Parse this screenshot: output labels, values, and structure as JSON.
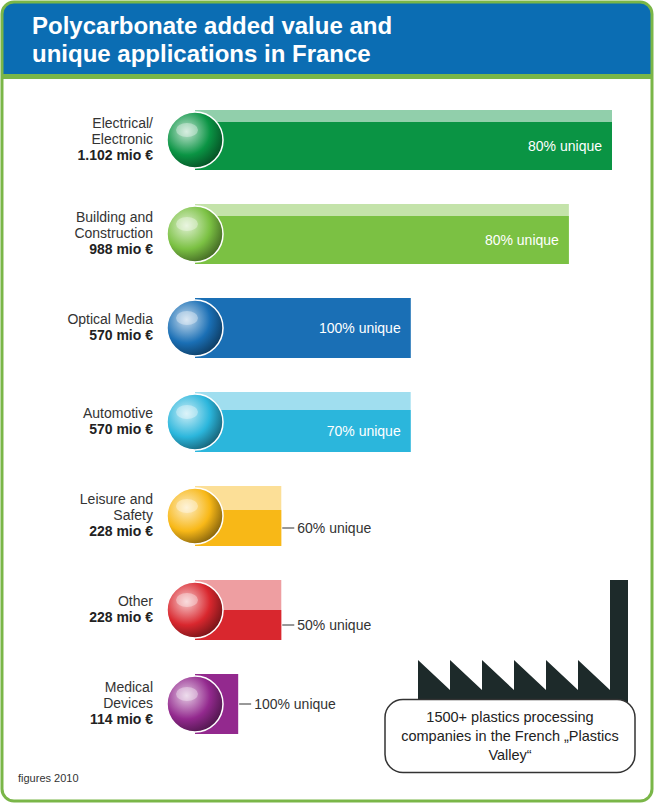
{
  "chart_data": {
    "type": "bar",
    "title": "Polycarbonate added value and unique applications in France",
    "orientation": "horizontal",
    "categories": [
      "Electrical/ Electronic",
      "Building and Construction",
      "Optical Media",
      "Automotive",
      "Leisure and Safety",
      "Other",
      "Medical Devices"
    ],
    "values": [
      1102,
      988,
      570,
      570,
      228,
      228,
      114
    ],
    "value_labels": [
      "1.102 mio €",
      "988 mio €",
      "570 mio €",
      "570 mio €",
      "228 mio €",
      "228 mio €",
      "114 mio €"
    ],
    "unique_share": [
      80,
      80,
      100,
      70,
      60,
      50,
      100
    ],
    "unique_labels": [
      "80% unique",
      "80% unique",
      "100% unique",
      "70% unique",
      "60% unique",
      "50% unique",
      "100% unique"
    ],
    "colors": [
      "#0a9444",
      "#7bc143",
      "#1a6fb5",
      "#2bb6dc",
      "#f8b817",
      "#d9272e",
      "#93298e"
    ],
    "data_labels": true,
    "tick_labels": false,
    "annotations": [
      "1500+ plastics processing companies in the French „Plastics Valley“"
    ],
    "footnote": "figures 2010"
  }
}
